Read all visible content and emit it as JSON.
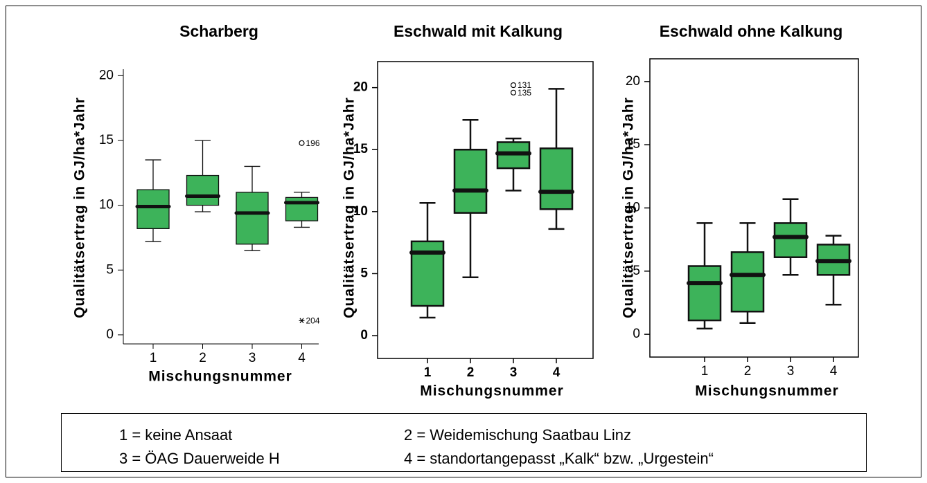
{
  "chart_data": [
    {
      "type": "box",
      "title": "Scharberg",
      "xlabel": "Mischungsnummer",
      "ylabel": "Qualitätsertrag in GJ/ha*Jahr",
      "categories": [
        "1",
        "2",
        "3",
        "4"
      ],
      "color": "#3db35a",
      "max": [
        13.5,
        15.0,
        13.0,
        11.0
      ],
      "q3": [
        11.2,
        12.3,
        11.0,
        10.6
      ],
      "median": [
        9.9,
        10.7,
        9.4,
        10.2
      ],
      "q1": [
        8.2,
        10.0,
        7.0,
        8.8
      ],
      "min": [
        7.2,
        9.5,
        6.5,
        8.3
      ],
      "outliers": [
        {
          "category": "4",
          "value": 14.8,
          "label": "196",
          "marker": "circle"
        },
        {
          "category": "4",
          "value": 1.1,
          "label": "204",
          "marker": "star"
        }
      ],
      "ylim": [
        -0.7,
        20.5
      ],
      "yticks": [
        0,
        5,
        10,
        15,
        20
      ]
    },
    {
      "type": "box",
      "title": "Eschwald mit Kalkung",
      "xlabel": "Mischungsnummer",
      "ylabel": "Qualitätsertrag in GJ/ha*Jahr",
      "categories": [
        "1",
        "2",
        "3",
        "4"
      ],
      "color": "#3db35a",
      "max": [
        10.7,
        17.4,
        15.9,
        19.9
      ],
      "q3": [
        7.6,
        15.0,
        15.6,
        15.1
      ],
      "median": [
        6.7,
        11.7,
        14.7,
        11.6
      ],
      "q1": [
        2.4,
        9.9,
        13.5,
        10.2
      ],
      "min": [
        1.45,
        4.7,
        11.7,
        8.6
      ],
      "outliers": [
        {
          "category": "3",
          "value": 20.2,
          "label": "131",
          "marker": "circle"
        },
        {
          "category": "3",
          "value": 19.6,
          "label": "135",
          "marker": "circle"
        }
      ],
      "ylim": [
        -1.84,
        22.1
      ],
      "yticks": [
        0,
        5,
        10,
        15,
        20
      ]
    },
    {
      "type": "box",
      "title": "Eschwald ohne Kalkung",
      "xlabel": "Mischungsnummer",
      "ylabel": "Qualitätsertrag in GJ/ha*Jahr",
      "categories": [
        "1",
        "2",
        "3",
        "4"
      ],
      "color": "#3db35a",
      "max": [
        8.8,
        8.8,
        10.7,
        7.8
      ],
      "q3": [
        5.4,
        6.5,
        8.8,
        7.1
      ],
      "median": [
        4.05,
        4.7,
        7.7,
        5.8
      ],
      "q1": [
        1.1,
        1.8,
        6.1,
        4.7
      ],
      "min": [
        0.45,
        0.9,
        4.7,
        2.35
      ],
      "outliers": [],
      "ylim": [
        -1.8,
        21.8
      ],
      "yticks": [
        0,
        5,
        10,
        15,
        20
      ]
    }
  ],
  "legend": {
    "items": [
      "1 = keine Ansaat",
      "2 = Weidemischung Saatbau Linz",
      "3 = ÖAG Dauerweide H",
      "4 = standortangepasst „Kalk“ bzw. „Urgestein“"
    ]
  }
}
